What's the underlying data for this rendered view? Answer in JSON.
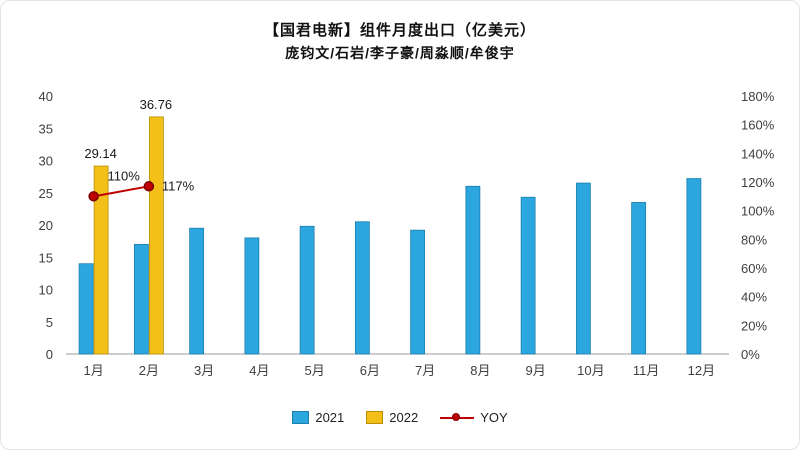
{
  "title": "【国君电新】组件月度出口（亿美元）",
  "subtitle": "庞钧文/石岩/李子豪/周淼顺/牟俊宇",
  "colors": {
    "bar_2021": "#2BA6DE",
    "bar_2021_border": "#1E7FAC",
    "bar_2022": "#F3C01A",
    "bar_2022_border": "#B98E00",
    "yoy_line": "#C00000",
    "yoy_marker": "#C00000",
    "yoy_marker_border": "#7B0000",
    "axis_text": "#404040",
    "axis_line": "#9B9B9B"
  },
  "chart_data": {
    "type": "bar+line",
    "title": "【国君电新】组件月度出口（亿美元）",
    "categories": [
      "1月",
      "2月",
      "3月",
      "4月",
      "5月",
      "6月",
      "7月",
      "8月",
      "9月",
      "10月",
      "11月",
      "12月"
    ],
    "series": [
      {
        "name": "2021",
        "type": "bar",
        "axis": "left",
        "values": [
          14,
          17,
          19.5,
          18,
          19.8,
          20.5,
          19.2,
          26,
          24.3,
          26.5,
          23.5,
          27.2
        ]
      },
      {
        "name": "2022",
        "type": "bar",
        "axis": "left",
        "values": [
          29.14,
          36.76,
          null,
          null,
          null,
          null,
          null,
          null,
          null,
          null,
          null,
          null
        ],
        "data_labels": [
          "29.14",
          "36.76"
        ]
      },
      {
        "name": "YOY",
        "type": "line",
        "axis": "right",
        "values": [
          110,
          117,
          null,
          null,
          null,
          null,
          null,
          null,
          null,
          null,
          null,
          null
        ],
        "data_labels": [
          "110%",
          "117%"
        ]
      }
    ],
    "left_axis": {
      "min": 0,
      "max": 40,
      "step": 5,
      "ticks": [
        "0",
        "5",
        "10",
        "15",
        "20",
        "25",
        "30",
        "35",
        "40"
      ]
    },
    "right_axis": {
      "min": 0,
      "max": 180,
      "step": 20,
      "ticks": [
        "0%",
        "20%",
        "40%",
        "60%",
        "80%",
        "100%",
        "120%",
        "140%",
        "160%",
        "180%"
      ]
    },
    "grid": false,
    "legend_position": "bottom"
  }
}
